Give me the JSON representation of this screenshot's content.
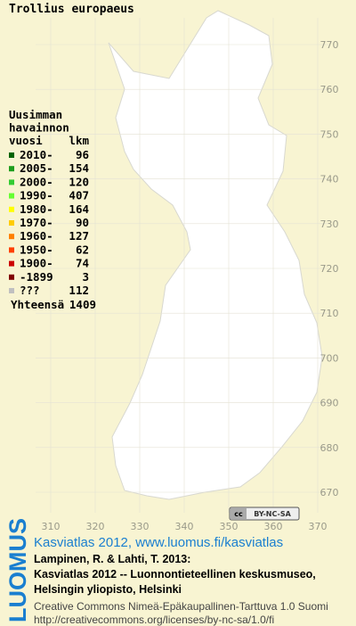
{
  "map": {
    "title": "Trollius europaeus",
    "legend": {
      "header": [
        "Uusimman",
        "havainnon",
        "vuosi"
      ],
      "count_header": "lkm",
      "items": [
        {
          "label": "2010-",
          "count": 96,
          "color": "#006400"
        },
        {
          "label": "2005-",
          "count": 154,
          "color": "#1e9e1e"
        },
        {
          "label": "2000-",
          "count": 120,
          "color": "#33cc33"
        },
        {
          "label": "1990-",
          "count": 407,
          "color": "#66ff33"
        },
        {
          "label": "1980-",
          "count": 164,
          "color": "#ffff00"
        },
        {
          "label": "1970-",
          "count": 90,
          "color": "#ffcc00"
        },
        {
          "label": "1960-",
          "count": 127,
          "color": "#ff8000"
        },
        {
          "label": "1950-",
          "count": 62,
          "color": "#ff4000"
        },
        {
          "label": "1900-",
          "count": 74,
          "color": "#cc0000"
        },
        {
          "label": "-1899",
          "count": 3,
          "color": "#800000"
        },
        {
          "label": "???",
          "count": 112,
          "color": "#c0c0c0"
        }
      ],
      "total_label": "Yhteensä",
      "total": 1409
    },
    "yticks": [
      770,
      760,
      750,
      740,
      730,
      720,
      710,
      700,
      690,
      680,
      670
    ],
    "xticks": [
      310,
      320,
      330,
      340,
      350,
      360,
      370
    ],
    "license_badge": "BY-NC-SA"
  },
  "footer": {
    "logo": "LUOMUS",
    "headline": "Kasviatlas 2012, www.luomus.fi/kasviatlas",
    "citation": [
      "Lampinen, R. & Lahti, T. 2013:",
      "Kasviatlas 2012 -- Luonnontieteellinen keskusmuseo,",
      "Helsingin yliopisto, Helsinki"
    ],
    "license": [
      "Creative Commons Nimeä-Epäkaupallinen-Tarttuva 1.0 Suomi",
      "http://creativecommons.org/licenses/by-nc-sa/1.0/fi"
    ]
  }
}
